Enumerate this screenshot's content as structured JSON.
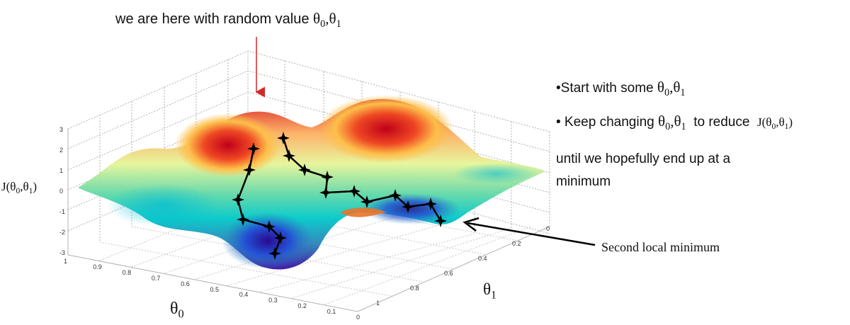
{
  "annotations": {
    "title_text": "we are here with random value",
    "title_theta": "θ",
    "sub0": "0",
    "sub1": "1",
    "comma": ",",
    "bullet1_text": "•Start with some",
    "bullet2_text": "• Keep changing",
    "bullet2_mid": "to reduce",
    "j_func_prefix": "J(",
    "j_func_suffix": ")",
    "bullet3_line1": "until we hopefully end up at a",
    "bullet3_line2": "minimum",
    "second_local_minimum": "Second local minimum"
  },
  "axes": {
    "z_label_prefix": "J(",
    "z_label_suffix": ")",
    "x_label": "θ",
    "x_label_sub": "0",
    "y_label": "θ",
    "y_label_sub": "1",
    "z_ticks": [
      "3",
      "2",
      "1",
      "0",
      "-1",
      "-2",
      "-3"
    ],
    "theta0_ticks": [
      "1",
      "0.9",
      "0.8",
      "0.7",
      "0.6",
      "0.5",
      "0.4",
      "0.3",
      "0.2",
      "0.1",
      "0"
    ],
    "theta1_ticks": [
      "0",
      "0.2",
      "0.4",
      "0.6",
      "0.8",
      "1"
    ]
  },
  "colors": {
    "surface_high": "#d7191c",
    "surface_mid_high": "#fdae61",
    "surface_mid": "#e6f598",
    "surface_mid_low": "#00c8c8",
    "surface_low": "#2b83ba",
    "surface_deep": "#3a0ca3",
    "grid": "#b0b0b0",
    "path": "#000000",
    "red_arrow": "#d62728"
  }
}
